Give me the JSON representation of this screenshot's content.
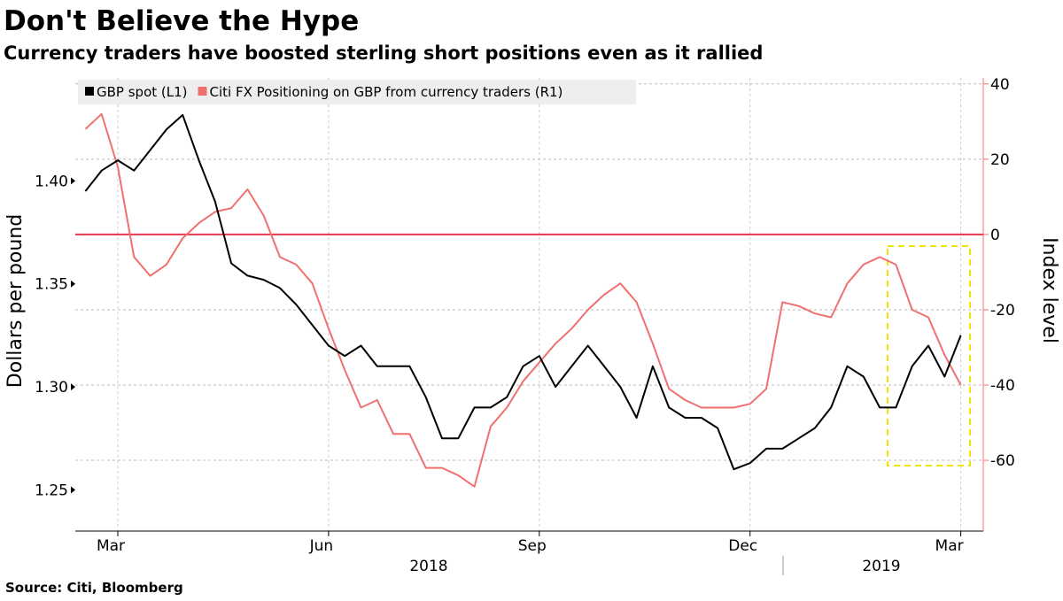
{
  "chart_data": {
    "type": "line",
    "title": "Don't Believe the Hype",
    "subtitle": "Currency traders have boosted sterling short positions even as it rallied",
    "source": "Source: Citi, Bloomberg",
    "ylabel": "Dollars per pound",
    "y2label": "Index level",
    "categories": [
      null,
      null,
      "Mar",
      null,
      null,
      null,
      null,
      null,
      null,
      null,
      null,
      null,
      null,
      null,
      null,
      "Jun",
      null,
      null,
      null,
      null,
      null,
      null,
      null,
      null,
      null,
      null,
      null,
      null,
      "Sep",
      null,
      null,
      null,
      null,
      null,
      null,
      null,
      null,
      null,
      null,
      null,
      null,
      "Dec",
      null,
      null,
      null,
      null,
      null,
      null,
      null,
      null,
      null,
      null,
      null,
      null,
      "Mar"
    ],
    "x_group_labels": [
      "2018",
      "2019"
    ],
    "series": [
      {
        "name": "GBP spot (L1)",
        "color": "#000000",
        "axis": "y",
        "values": [
          1.395,
          1.405,
          1.41,
          1.405,
          1.415,
          1.425,
          1.432,
          1.41,
          1.39,
          1.36,
          1.354,
          1.352,
          1.348,
          1.34,
          1.33,
          1.32,
          1.315,
          1.32,
          1.31,
          1.31,
          1.31,
          1.295,
          1.275,
          1.275,
          1.29,
          1.29,
          1.295,
          1.31,
          1.315,
          1.3,
          1.31,
          1.32,
          1.31,
          1.3,
          1.285,
          1.31,
          1.29,
          1.285,
          1.285,
          1.28,
          1.26,
          1.263,
          1.27,
          1.27,
          1.275,
          1.28,
          1.29,
          1.31,
          1.305,
          1.29,
          1.29,
          1.31,
          1.32,
          1.305,
          1.325
        ]
      },
      {
        "name": "Citi FX Positioning on GBP from currency traders (R1)",
        "color": "#f07070",
        "axis": "y2",
        "values": [
          28,
          32,
          18,
          -6,
          -11,
          -8,
          -1,
          3,
          6,
          7,
          12,
          5,
          -6,
          -8,
          -13,
          -25,
          -36,
          -46,
          -44,
          -53,
          -53,
          -62,
          -62,
          -64,
          -67,
          -51,
          -46,
          -39,
          -34,
          -29,
          -25,
          -20,
          -16,
          -13,
          -18,
          -29,
          -41,
          -44,
          -46,
          -46,
          -46,
          -45,
          -41,
          -18,
          -19,
          -21,
          -22,
          -13,
          -8,
          -6,
          -8,
          -20,
          -22,
          -32,
          -40
        ]
      }
    ],
    "ylim": [
      1.23,
      1.45
    ],
    "yticks": [
      1.25,
      {
        "value": 1.3,
        "label": "1.30"
      },
      1.35,
      {
        "value": 1.4,
        "label": "1.40"
      }
    ],
    "y2lim": [
      -78.8,
      41.6
    ],
    "y2ticks": [
      -60,
      -40,
      -20,
      0,
      20,
      40
    ],
    "y2_reference_line": 0,
    "grid": true,
    "legend": "top-left"
  }
}
